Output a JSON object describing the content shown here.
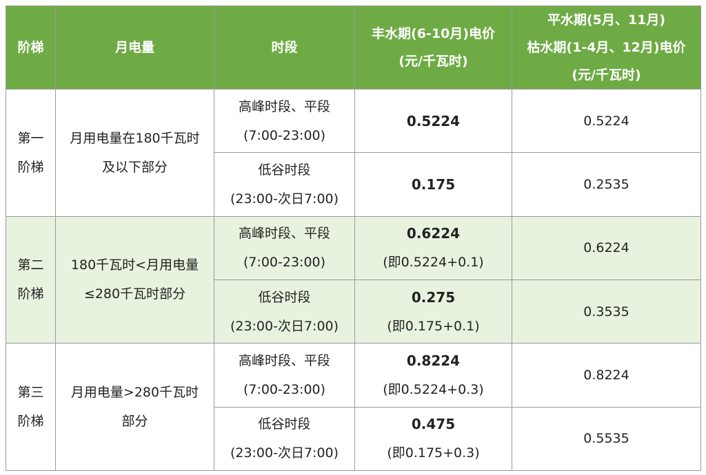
{
  "header": {
    "tier": "阶梯",
    "monthly_usage": "月电量",
    "period": "时段",
    "wet_season": [
      "丰水期(6-10月)电价",
      "(元/千瓦时)"
    ],
    "other_season": [
      "平水期(5月、11月)",
      "枯水期(1-4月、12月)电价",
      "(元/千瓦时)"
    ]
  },
  "tiers": [
    {
      "name": [
        "第一",
        "阶梯"
      ],
      "usage": [
        "月用电量在180千瓦时",
        "及以下部分"
      ],
      "rows": [
        {
          "period": [
            "高峰时段、平段",
            "(7:00-23:00)"
          ],
          "wet_price": [
            "0.5224"
          ],
          "other_price": "0.5224"
        },
        {
          "period": [
            "低谷时段",
            "(23:00-次日7:00)"
          ],
          "wet_price": [
            "0.175"
          ],
          "other_price": "0.2535"
        }
      ]
    },
    {
      "name": [
        "第二",
        "阶梯"
      ],
      "usage": [
        "180千瓦时<月用电量",
        "≤280千瓦时部分"
      ],
      "rows": [
        {
          "period": [
            "高峰时段、平段",
            "(7:00-23:00)"
          ],
          "wet_price": [
            "0.6224",
            "(即0.5224+0.1)"
          ],
          "other_price": "0.6224"
        },
        {
          "period": [
            "低谷时段",
            "(23:00-次日7:00)"
          ],
          "wet_price": [
            "0.275",
            "(即0.175+0.1)"
          ],
          "other_price": "0.3535"
        }
      ]
    },
    {
      "name": [
        "第三",
        "阶梯"
      ],
      "usage": [
        "月用电量>280千瓦时",
        "部分"
      ],
      "rows": [
        {
          "period": [
            "高峰时段、平段",
            "(7:00-23:00)"
          ],
          "wet_price": [
            "0.8224",
            "(即0.5224+0.3)"
          ],
          "other_price": "0.8224"
        },
        {
          "period": [
            "低谷时段",
            "(23:00-次日7:00)"
          ],
          "wet_price": [
            "0.475",
            "(即0.175+0.3)"
          ],
          "other_price": "0.5535"
        }
      ]
    }
  ],
  "colors": {
    "header_bg": "#6eab45",
    "tier2_bg": "#e8f3df",
    "border": "#9a9a9a"
  }
}
